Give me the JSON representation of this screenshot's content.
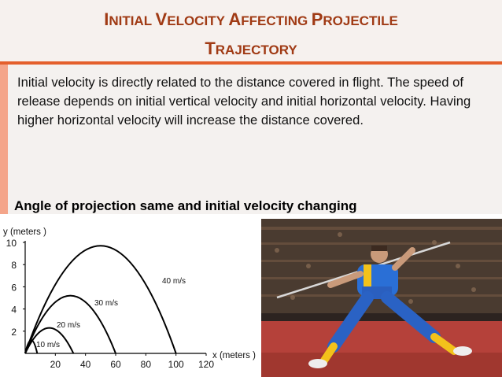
{
  "slide": {
    "title_line1_words": [
      {
        "cap": "I",
        "rest": "NITIAL"
      },
      {
        "cap": "V",
        "rest": "ELOCITY"
      },
      {
        "cap": "A",
        "rest": "FFECTING"
      },
      {
        "cap": "P",
        "rest": "ROJECTILE"
      }
    ],
    "title_line2_words": [
      {
        "cap": "T",
        "rest": "RAJECTORY"
      }
    ],
    "body_text": "Initial velocity is directly related to the distance covered in flight. The speed of release depends on initial vertical velocity and initial horizontal velocity. Having higher horizontal velocity will increase the distance covered.",
    "subheading": "Angle of projection same and initial velocity changing"
  },
  "colors": {
    "title": "#a03a14",
    "accent_line": "#e45f2c",
    "side_bar": "#f4a58a"
  },
  "chart_data": {
    "type": "line",
    "ylabel": "y (meters )",
    "xlabel": "x (meters )",
    "xticks": [
      20,
      40,
      60,
      80,
      100,
      120
    ],
    "yticks": [
      2,
      4,
      6,
      8,
      10
    ],
    "xlim": [
      0,
      120
    ],
    "ylim": [
      0,
      10
    ],
    "series": [
      {
        "name": "10 m/s",
        "x": [
          0,
          2,
          4,
          6,
          8
        ],
        "y": [
          0,
          0.9,
          1.2,
          0.9,
          0
        ]
      },
      {
        "name": "20 m/s",
        "x": [
          0,
          8,
          16,
          24,
          32
        ],
        "y": [
          0,
          1.7,
          2.3,
          1.7,
          0
        ]
      },
      {
        "name": "30 m/s",
        "x": [
          0,
          15,
          30,
          45,
          60
        ],
        "y": [
          0,
          3.9,
          5.2,
          3.9,
          0
        ]
      },
      {
        "name": "40 m/s",
        "x": [
          0,
          25,
          50,
          75,
          100
        ],
        "y": [
          0,
          7.3,
          9.7,
          7.3,
          0
        ]
      }
    ],
    "grid": false,
    "legend": "inline labels"
  },
  "photo": {
    "icon": "javelin-thrower-photo"
  }
}
